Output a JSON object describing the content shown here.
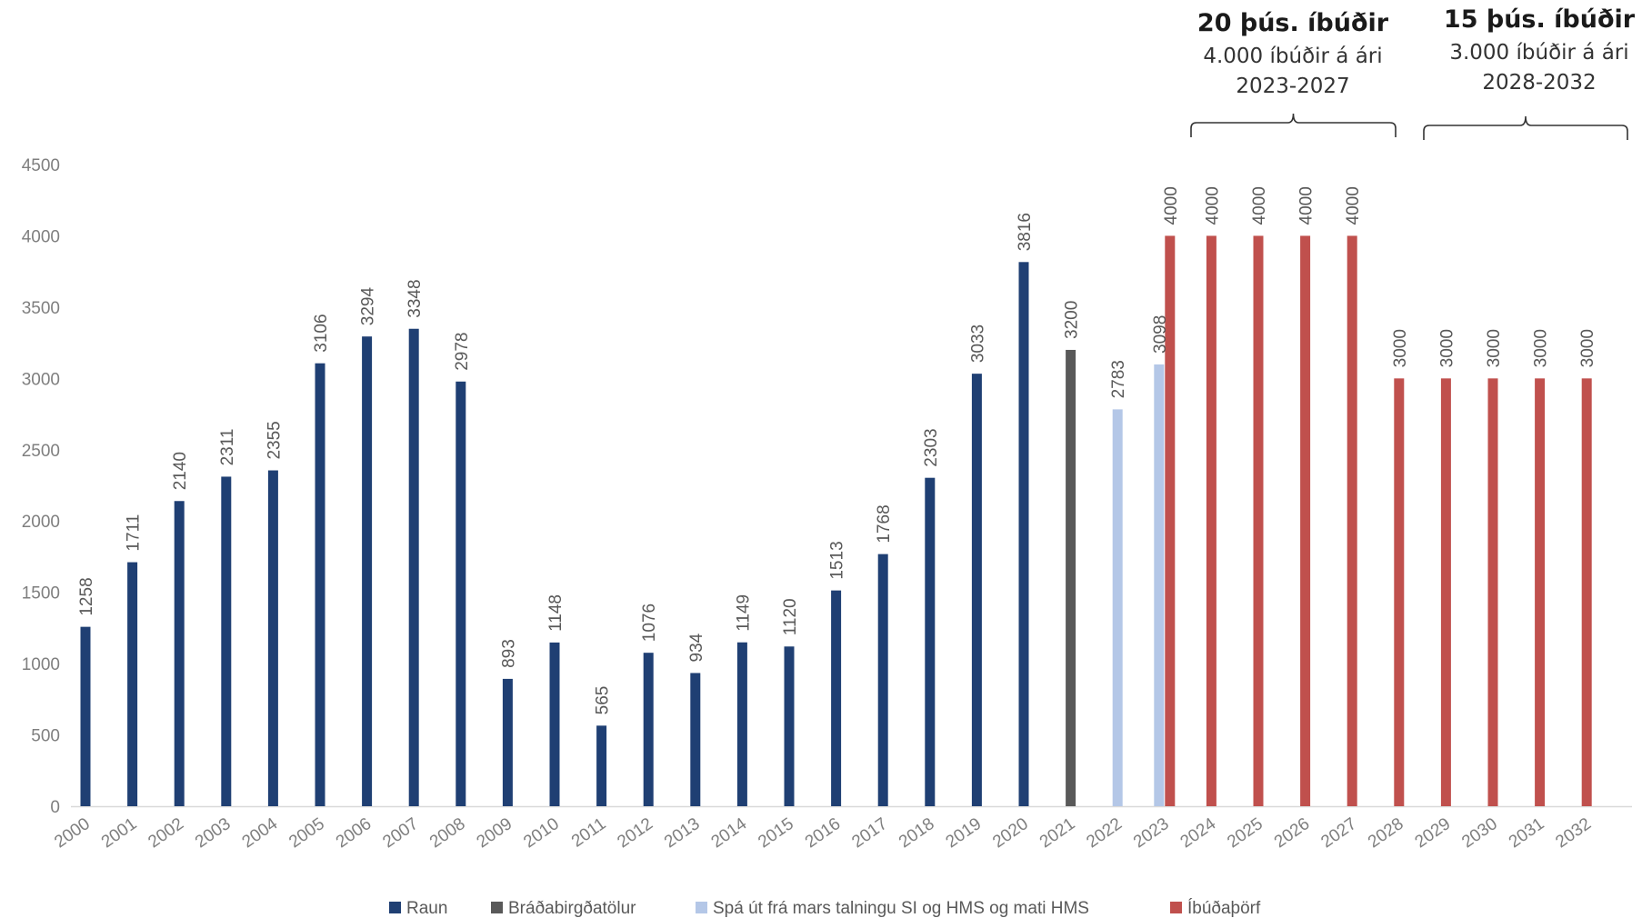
{
  "chart_data": {
    "type": "bar",
    "title": "",
    "xlabel": "",
    "ylabel": "",
    "ylim": [
      0,
      4500
    ],
    "yticks": [
      0,
      500,
      1000,
      1500,
      2000,
      2500,
      3000,
      3500,
      4000,
      4500
    ],
    "grid": false,
    "legend_position": "bottom",
    "categories": [
      "2000",
      "2001",
      "2002",
      "2003",
      "2004",
      "2005",
      "2006",
      "2007",
      "2008",
      "2009",
      "2010",
      "2011",
      "2012",
      "2013",
      "2014",
      "2015",
      "2016",
      "2017",
      "2018",
      "2019",
      "2020",
      "2021",
      "2022",
      "2023",
      "2024",
      "2025",
      "2026",
      "2027",
      "2028",
      "2029",
      "2030",
      "2031",
      "2032"
    ],
    "series": [
      {
        "name": "Raun",
        "color": "#1f3f73",
        "values": [
          1258,
          1711,
          2140,
          2311,
          2355,
          3106,
          3294,
          3348,
          2978,
          893,
          1148,
          565,
          1076,
          934,
          1149,
          1120,
          1513,
          1768,
          2303,
          3033,
          3816,
          null,
          null,
          null,
          null,
          null,
          null,
          null,
          null,
          null,
          null,
          null,
          null
        ]
      },
      {
        "name": "Bráðabirgðatölur",
        "color": "#595959",
        "values": [
          null,
          null,
          null,
          null,
          null,
          null,
          null,
          null,
          null,
          null,
          null,
          null,
          null,
          null,
          null,
          null,
          null,
          null,
          null,
          null,
          null,
          3200,
          null,
          null,
          null,
          null,
          null,
          null,
          null,
          null,
          null,
          null,
          null
        ]
      },
      {
        "name": "Spá út frá mars talningu SI og HMS og mati HMS",
        "color": "#b4c7e7",
        "values": [
          null,
          null,
          null,
          null,
          null,
          null,
          null,
          null,
          null,
          null,
          null,
          null,
          null,
          null,
          null,
          null,
          null,
          null,
          null,
          null,
          null,
          null,
          2783,
          3098,
          null,
          null,
          null,
          null,
          null,
          null,
          null,
          null,
          null
        ]
      },
      {
        "name": "Íbúðaþörf",
        "color": "#c0504d",
        "values": [
          null,
          null,
          null,
          null,
          null,
          null,
          null,
          null,
          null,
          null,
          null,
          null,
          null,
          null,
          null,
          null,
          null,
          null,
          null,
          null,
          null,
          null,
          null,
          4000,
          4000,
          4000,
          4000,
          4000,
          3000,
          3000,
          3000,
          3000,
          3000
        ]
      }
    ],
    "annotations": [
      {
        "title": "20 þús. íbúðir",
        "line1": "4.000 íbúðir á ári",
        "line2": "2023-2027",
        "from": "2023",
        "to": "2027"
      },
      {
        "title": "15 þús. íbúðir",
        "line1": "3.000 íbúðir á ári",
        "line2": "2028-2032",
        "from": "2028",
        "to": "2032"
      }
    ]
  }
}
